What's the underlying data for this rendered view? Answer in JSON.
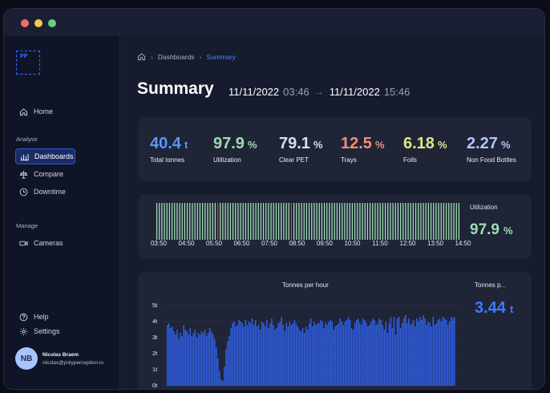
{
  "sidebar": {
    "logo": "PP",
    "home": "Home",
    "analyse_label": "Analyse",
    "dashboards": "Dashboards",
    "compare": "Compare",
    "downtime": "Downtime",
    "manage_label": "Manage",
    "cameras": "Cameras",
    "help": "Help",
    "settings": "Settings",
    "user": {
      "initials": "NB",
      "name": "Nicolas Braem",
      "email": "nicolas@polyperception.io"
    }
  },
  "breadcrumb": {
    "dashboards": "Dashboards",
    "summary": "Summary"
  },
  "header": {
    "title": "Summary",
    "start_date": "11/11/2022",
    "start_time": "03:46",
    "end_date": "11/11/2022",
    "end_time": "15:46"
  },
  "kpis": [
    {
      "value": "40.4",
      "unit": "t",
      "label": "Total tonnes",
      "color": "#5a95ff"
    },
    {
      "value": "97.9",
      "unit": "%",
      "label": "Utilization",
      "color": "#9fdcb1"
    },
    {
      "value": "79.1",
      "unit": "%",
      "label": "Clear PET",
      "color": "#cfe1f5"
    },
    {
      "value": "12.5",
      "unit": "%",
      "label": "Trays",
      "color": "#f28e7a"
    },
    {
      "value": "6.18",
      "unit": "%",
      "label": "Foils",
      "color": "#dde87e"
    },
    {
      "value": "2.27",
      "unit": "%",
      "label": "Non Food Bottles",
      "color": "#b3c4ff"
    }
  ],
  "utilization": {
    "label": "Utilization",
    "value": "97.9",
    "unit": "%",
    "ticks": [
      "03:50",
      "04:50",
      "05:50",
      "06:50",
      "07:50",
      "08:50",
      "09:50",
      "10:50",
      "11:50",
      "12:50",
      "13:50",
      "14:50"
    ],
    "down_slots": [
      24,
      53
    ]
  },
  "colors": {
    "ok": "#a3e0b7",
    "down": "#d8453f",
    "bar": "#2f5fe6"
  },
  "chart_data": {
    "type": "bar",
    "title": "Tonnes per hour",
    "ylabel": "t",
    "yticks": [
      "5t",
      "4t",
      "3t",
      "2t",
      "1t",
      "0t"
    ],
    "ylim": [
      0,
      5
    ],
    "values": [
      3.8,
      3.9,
      3.6,
      3.7,
      3.4,
      3.2,
      3.5,
      2.9,
      3.3,
      3.1,
      3.8,
      3.5,
      3.4,
      3.2,
      3.6,
      3.1,
      3.3,
      3.5,
      3.0,
      3.3,
      3.2,
      3.4,
      3.3,
      3.5,
      3.1,
      3.3,
      3.6,
      3.4,
      3.2,
      2.9,
      2.4,
      1.7,
      0.9,
      0.4,
      0.3,
      1.2,
      2.3,
      2.8,
      3.1,
      3.6,
      3.9,
      4.0,
      3.7,
      3.8,
      4.1,
      4.0,
      3.9,
      3.7,
      4.1,
      3.8,
      4.0,
      3.9,
      4.2,
      3.8,
      4.1,
      3.7,
      3.8,
      3.5,
      4.0,
      3.9,
      3.7,
      4.1,
      3.6,
      3.9,
      4.2,
      3.8,
      3.5,
      3.6,
      3.9,
      4.0,
      4.3,
      3.8,
      3.4,
      3.9,
      3.7,
      4.0,
      3.8,
      3.9,
      4.1,
      3.9,
      3.7,
      3.5,
      3.4,
      3.6,
      3.3,
      3.7,
      3.5,
      3.9,
      4.2,
      3.7,
      4.0,
      3.8,
      3.9,
      3.9,
      4.1,
      4.0,
      3.6,
      3.9,
      3.8,
      4.0,
      4.1,
      4.0,
      3.5,
      3.7,
      3.8,
      3.9,
      4.2,
      4.0,
      3.8,
      4.0,
      4.1,
      4.3,
      4.1,
      3.6,
      3.5,
      3.9,
      4.1,
      4.2,
      3.9,
      3.8,
      4.2,
      4.1,
      3.9,
      3.7,
      3.8,
      4.0,
      4.2,
      4.1,
      3.8,
      3.9,
      4.2,
      4.1,
      3.8,
      3.5,
      4.0,
      3.3,
      3.9,
      4.3,
      3.6,
      4.3,
      3.2,
      4.2,
      4.3,
      3.6,
      3.9,
      4.2,
      4.4,
      3.9,
      4.2,
      3.8,
      3.9,
      4.1,
      3.7,
      4.2,
      4.0,
      4.3,
      4.1,
      4.4,
      4.2,
      3.8,
      4.0,
      3.9,
      3.7,
      4.3,
      3.8,
      3.9,
      4.1,
      4.2,
      4.0,
      4.3,
      4.2,
      4.1,
      3.8,
      4.0,
      4.3,
      4.2,
      4.3
    ]
  },
  "tonnes_per_hour": {
    "label": "Tonnes p...",
    "value": "3.44",
    "unit": "t"
  }
}
